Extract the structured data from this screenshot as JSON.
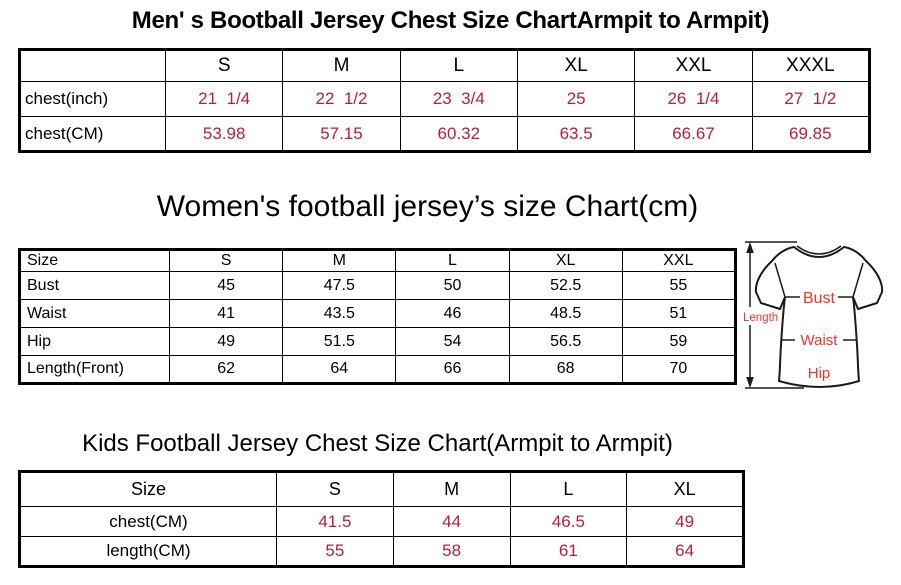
{
  "colors": {
    "table_value_red": "#b02338",
    "diagram_label_red": "#e8372b",
    "border_black": "#000000",
    "background": "#ffffff"
  },
  "men_chart": {
    "title": "Men' s Bootball Jersey Chest Size ChartArmpit to Armpit)",
    "columns": [
      "",
      "S",
      "M",
      "L",
      "XL",
      "XXL",
      "XXXL"
    ],
    "rows": [
      {
        "label": "chest(inch)",
        "values": [
          "21  1/4",
          "22  1/2",
          "23  3/4",
          "25",
          "26  1/4",
          "27  1/2"
        ]
      },
      {
        "label": "chest(CM)",
        "values": [
          "53.98",
          "57.15",
          "60.32",
          "63.5",
          "66.67",
          "69.85"
        ]
      }
    ]
  },
  "women_chart": {
    "title": "Women's football jersey’s size Chart(cm)",
    "columns": [
      "Size",
      "S",
      "M",
      "L",
      "XL",
      "XXL"
    ],
    "rows": [
      {
        "label": "Bust",
        "values": [
          "45",
          "47.5",
          "50",
          "52.5",
          "55"
        ]
      },
      {
        "label": "Waist",
        "values": [
          "41",
          "43.5",
          "46",
          "48.5",
          "51"
        ]
      },
      {
        "label": "Hip",
        "values": [
          "49",
          "51.5",
          "54",
          "56.5",
          "59"
        ]
      },
      {
        "label": "Length(Front)",
        "values": [
          "62",
          "64",
          "66",
          "68",
          "70"
        ]
      }
    ]
  },
  "kids_chart": {
    "title": "Kids Football Jersey Chest Size Chart(Armpit to Armpit)",
    "columns": [
      "Size",
      "S",
      "M",
      "L",
      "XL"
    ],
    "rows": [
      {
        "label": "chest(CM)",
        "values": [
          "41.5",
          "44",
          "46.5",
          "49"
        ]
      },
      {
        "label": "length(CM)",
        "values": [
          "55",
          "58",
          "61",
          "64"
        ]
      }
    ]
  },
  "diagram": {
    "length_label": "Length",
    "bust_label": "Bust",
    "waist_label": "Waist",
    "hip_label": "Hip"
  }
}
